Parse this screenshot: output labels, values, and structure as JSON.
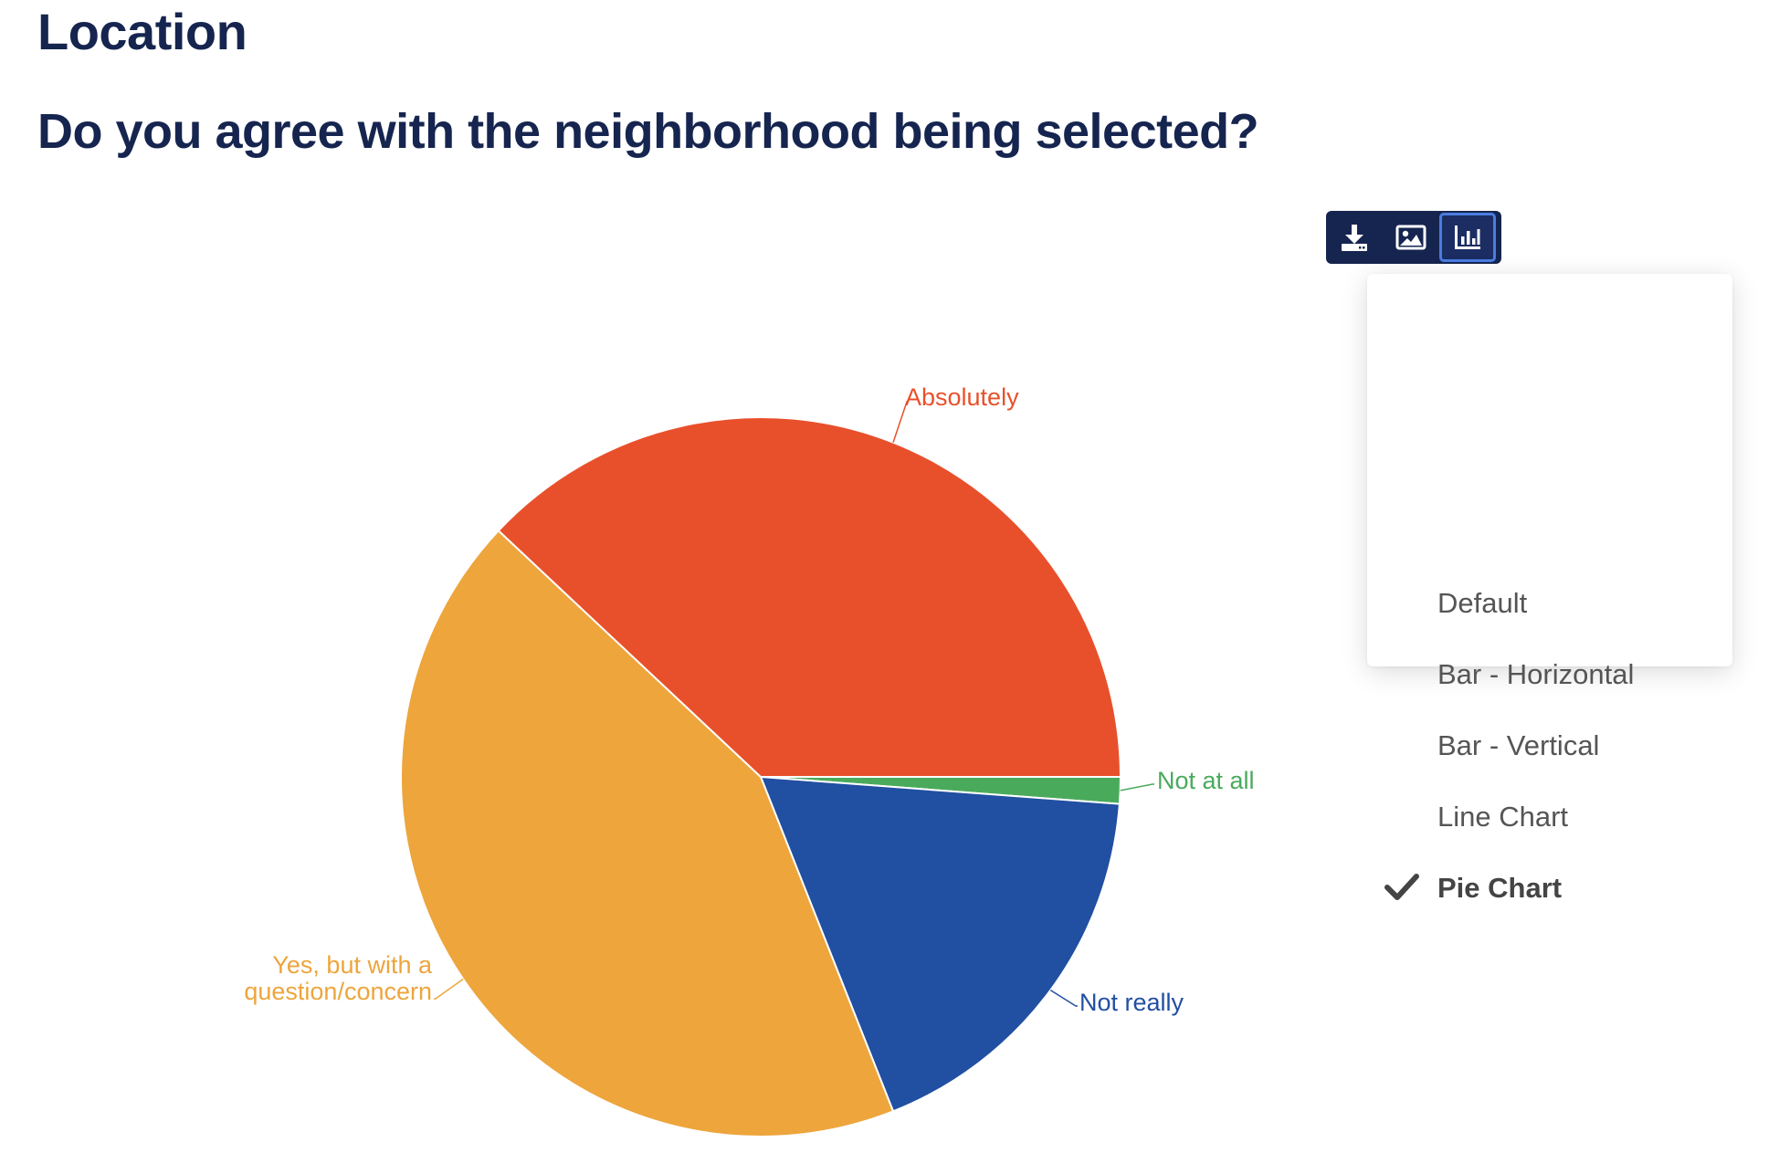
{
  "section_title": "Location",
  "question_title": "Do you agree with the neighborhood being selected?",
  "toolbar": {
    "buttons": [
      {
        "icon": "download-icon"
      },
      {
        "icon": "image-icon"
      },
      {
        "icon": "bar-chart-icon",
        "active": true
      }
    ]
  },
  "chart_type_menu": {
    "items": [
      "Default",
      "Bar - Horizontal",
      "Bar - Vertical",
      "Line Chart",
      "Pie Chart"
    ],
    "selected": "Pie Chart"
  },
  "chart_data": {
    "type": "pie",
    "slices": [
      {
        "label": "Not at all",
        "value": 1.2,
        "color": "#4aaa5c"
      },
      {
        "label": "Not really",
        "value": 17.8,
        "color": "#214fa2"
      },
      {
        "label": "Yes, but with a question/concern",
        "label_lines": [
          "Yes, but with a",
          "question/concern"
        ],
        "value": 43.0,
        "color": "#eda53c"
      },
      {
        "label": "Absolutely",
        "value": 38.0,
        "color": "#e8502b"
      }
    ]
  }
}
